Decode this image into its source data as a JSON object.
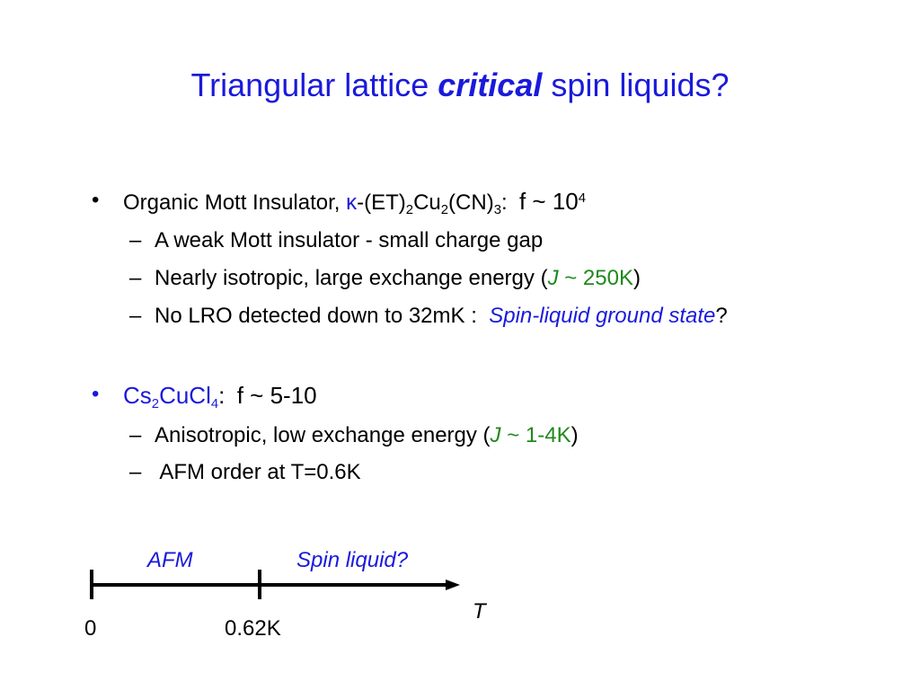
{
  "slide": {
    "title": {
      "pre": "Triangular lattice",
      "emph": "critical",
      "post": "spin liquids?"
    },
    "bullet1": {
      "marker": "•",
      "lead": "Organic Mott Insulator,",
      "kappa": "κ",
      "formula_part1": "-(ET)",
      "sub1": "2",
      "formula_part2": "Cu",
      "sub2": "2",
      "formula_part3": "(CN)",
      "sub3": "3",
      "colon": ":",
      "f_text": "f ~ 10",
      "f_exp": "4",
      "items": [
        {
          "dash": "–",
          "text": "A weak Mott insulator - small charge gap"
        },
        {
          "dash": "–",
          "text": "Nearly isotropic, large exchange energy (",
          "J": "J",
          "value": " ~ 250K",
          "close": ")"
        },
        {
          "dash": "–",
          "text": "No LRO detected down to 32mK :",
          "emph": "Spin-liquid ground state",
          "tail": "?"
        }
      ]
    },
    "bullet2": {
      "marker": "•",
      "cs": "Cs",
      "sub1": "2",
      "cucl": "CuCl",
      "sub2": "4",
      "colon": ":",
      "f_text": "f ~ 5-10",
      "items": [
        {
          "dash": "–",
          "text": "Anisotropic, low exchange energy (",
          "J": "J",
          "value": " ~ 1-4K",
          "close": ")"
        },
        {
          "dash": "–",
          "text": " AFM order at T=0.6K"
        }
      ]
    },
    "axis": {
      "region_afm": "AFM",
      "region_spin": "Spin liquid?",
      "t_label": "T",
      "tick0": "0",
      "tick1": "0.62K"
    }
  },
  "colors": {
    "accent": "#1a1adc",
    "green": "#1f8a1f",
    "text": "#000000"
  }
}
